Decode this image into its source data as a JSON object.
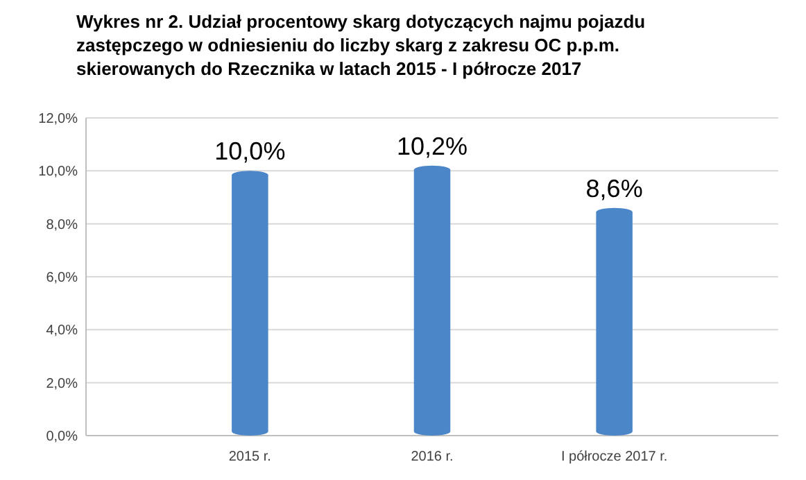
{
  "chart_data": {
    "type": "bar",
    "title": "Wykres nr 2. Udział procentowy skarg dotyczących najmu pojazdu zastępczego w odniesieniu do liczby skarg z zakresu OC p.p.m. skierowanych do Rzecznika w latach 2015 - I półrocze 2017",
    "categories": [
      "2015 r.",
      "2016 r.",
      "I półrocze 2017 r."
    ],
    "values": [
      10.0,
      10.2,
      8.6
    ],
    "value_labels": [
      "10,0%",
      "10,2%",
      "8,6%"
    ],
    "color": "#4a86c8",
    "ylim": [
      0,
      12
    ],
    "yticks": [
      {
        "value": 0,
        "label": "0,0%"
      },
      {
        "value": 2,
        "label": "2,0%"
      },
      {
        "value": 4,
        "label": "4,0%"
      },
      {
        "value": 6,
        "label": "6,0%"
      },
      {
        "value": 8,
        "label": "8,0%"
      },
      {
        "value": 10,
        "label": "10,0%"
      },
      {
        "value": 12,
        "label": "12,0%"
      }
    ],
    "grid": true
  }
}
